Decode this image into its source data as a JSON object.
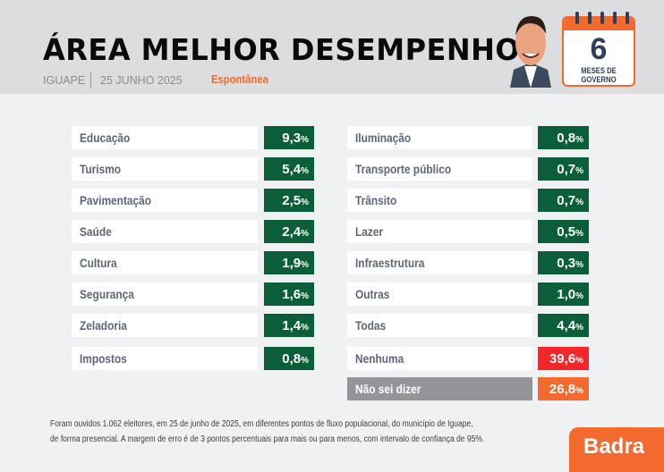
{
  "header": {
    "title": "ÁREA MELHOR DESEMPENHO",
    "city": "IGUAPE",
    "date": "25 JUNHO 2025",
    "type": "Espontânea"
  },
  "badge": {
    "number": "6",
    "label": "MESES DE GOVERNO"
  },
  "left": [
    {
      "label": "Educação",
      "value": "9,3"
    },
    {
      "label": "Turismo",
      "value": "5,4"
    },
    {
      "label": "Pavimentação",
      "value": "2,5"
    },
    {
      "label": "Saúde",
      "value": "2,4"
    },
    {
      "label": "Cultura",
      "value": "1,9"
    },
    {
      "label": "Segurança",
      "value": "1,6"
    },
    {
      "label": "Zeladoria",
      "value": "1,4"
    },
    {
      "label": "Impostos",
      "value": "0,8"
    }
  ],
  "right": [
    {
      "label": "Iluminação",
      "value": "0,8"
    },
    {
      "label": "Transporte público",
      "value": "0,7"
    },
    {
      "label": "Trânsito",
      "value": "0,7"
    },
    {
      "label": "Lazer",
      "value": "0,5"
    },
    {
      "label": "Infraestrutura",
      "value": "0,3"
    },
    {
      "label": "Outras",
      "value": "1,0"
    },
    {
      "label": "Todas",
      "value": "4,4"
    },
    {
      "label": "Nenhuma",
      "value": "39,6"
    },
    {
      "label": "Não sei dizer",
      "value": "26,8"
    }
  ],
  "percent": "%",
  "footnote": [
    "Foram ouvidos 1.062 eleitores, em 25 de junho de 2025, em diferentes pontos de fluxo populacional, do município de Iguape,",
    "de forma presencial. A margem de erro é de 3 pontos percentuais para mais ou para menos, com intervalo de confiança de 95%."
  ],
  "brand": "Badra",
  "colors": {
    "green": "#0b5e3a",
    "red": "#f5262a",
    "orange": "#f26a2e",
    "gray": "#939598"
  }
}
